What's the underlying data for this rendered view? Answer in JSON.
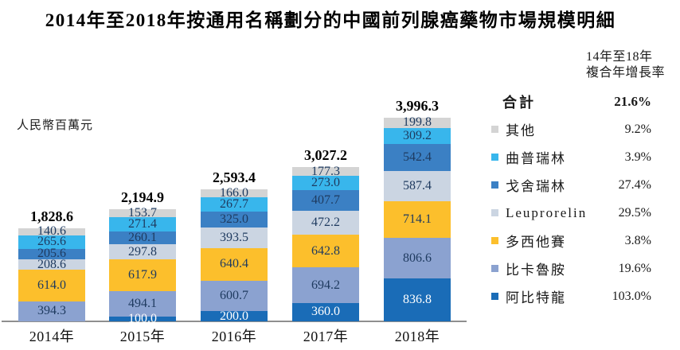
{
  "title": "2014年至2018年按通用名稱劃分的中國前列腺癌藥物市場規模明細",
  "unit_label": "人民幣百萬元",
  "legend": {
    "header_line1": "14年至18年",
    "header_line2": "複合年增長率",
    "total_label": "合計",
    "total_cagr": "21.6%"
  },
  "chart_data": {
    "type": "bar",
    "stacked": true,
    "title": "2014年至2018年按通用名稱劃分的中國前列腺癌藥物市場規模明細",
    "ylabel": "人民幣百萬元",
    "xlabel": "",
    "grid": false,
    "legend_position": "right",
    "categories": [
      "2014年",
      "2015年",
      "2016年",
      "2017年",
      "2018年"
    ],
    "totals": [
      1828.6,
      2194.9,
      2593.4,
      3027.2,
      3996.3
    ],
    "total_cagr_2014_2018": "21.6%",
    "series": [
      {
        "name": "其他",
        "color": "#d4d4d4",
        "cagr": "9.2%",
        "values": [
          140.6,
          153.7,
          166.0,
          177.3,
          199.8
        ]
      },
      {
        "name": "曲普瑞林",
        "color": "#38b6ec",
        "cagr": "3.9%",
        "values": [
          265.6,
          271.4,
          267.7,
          273.0,
          309.2
        ]
      },
      {
        "name": "戈舍瑞林",
        "color": "#3b80c4",
        "cagr": "27.4%",
        "values": [
          205.6,
          260.1,
          325.0,
          407.7,
          542.4
        ]
      },
      {
        "name": "Leuprorelin",
        "color": "#cbd5e2",
        "cagr": "29.5%",
        "values": [
          208.6,
          297.8,
          393.5,
          472.2,
          587.4
        ]
      },
      {
        "name": "多西他賽",
        "color": "#fcbf2c",
        "cagr": "3.8%",
        "values": [
          614.0,
          617.9,
          640.4,
          642.8,
          714.1
        ]
      },
      {
        "name": "比卡魯胺",
        "color": "#8ba2d0",
        "cagr": "19.6%",
        "values": [
          394.3,
          494.1,
          600.7,
          694.2,
          806.6
        ]
      },
      {
        "name": "阿比特龍",
        "color": "#1a6cb7",
        "cagr": "103.0%",
        "values": [
          null,
          100.0,
          200.0,
          360.0,
          836.8
        ],
        "label_color": "#ffffff"
      }
    ]
  }
}
